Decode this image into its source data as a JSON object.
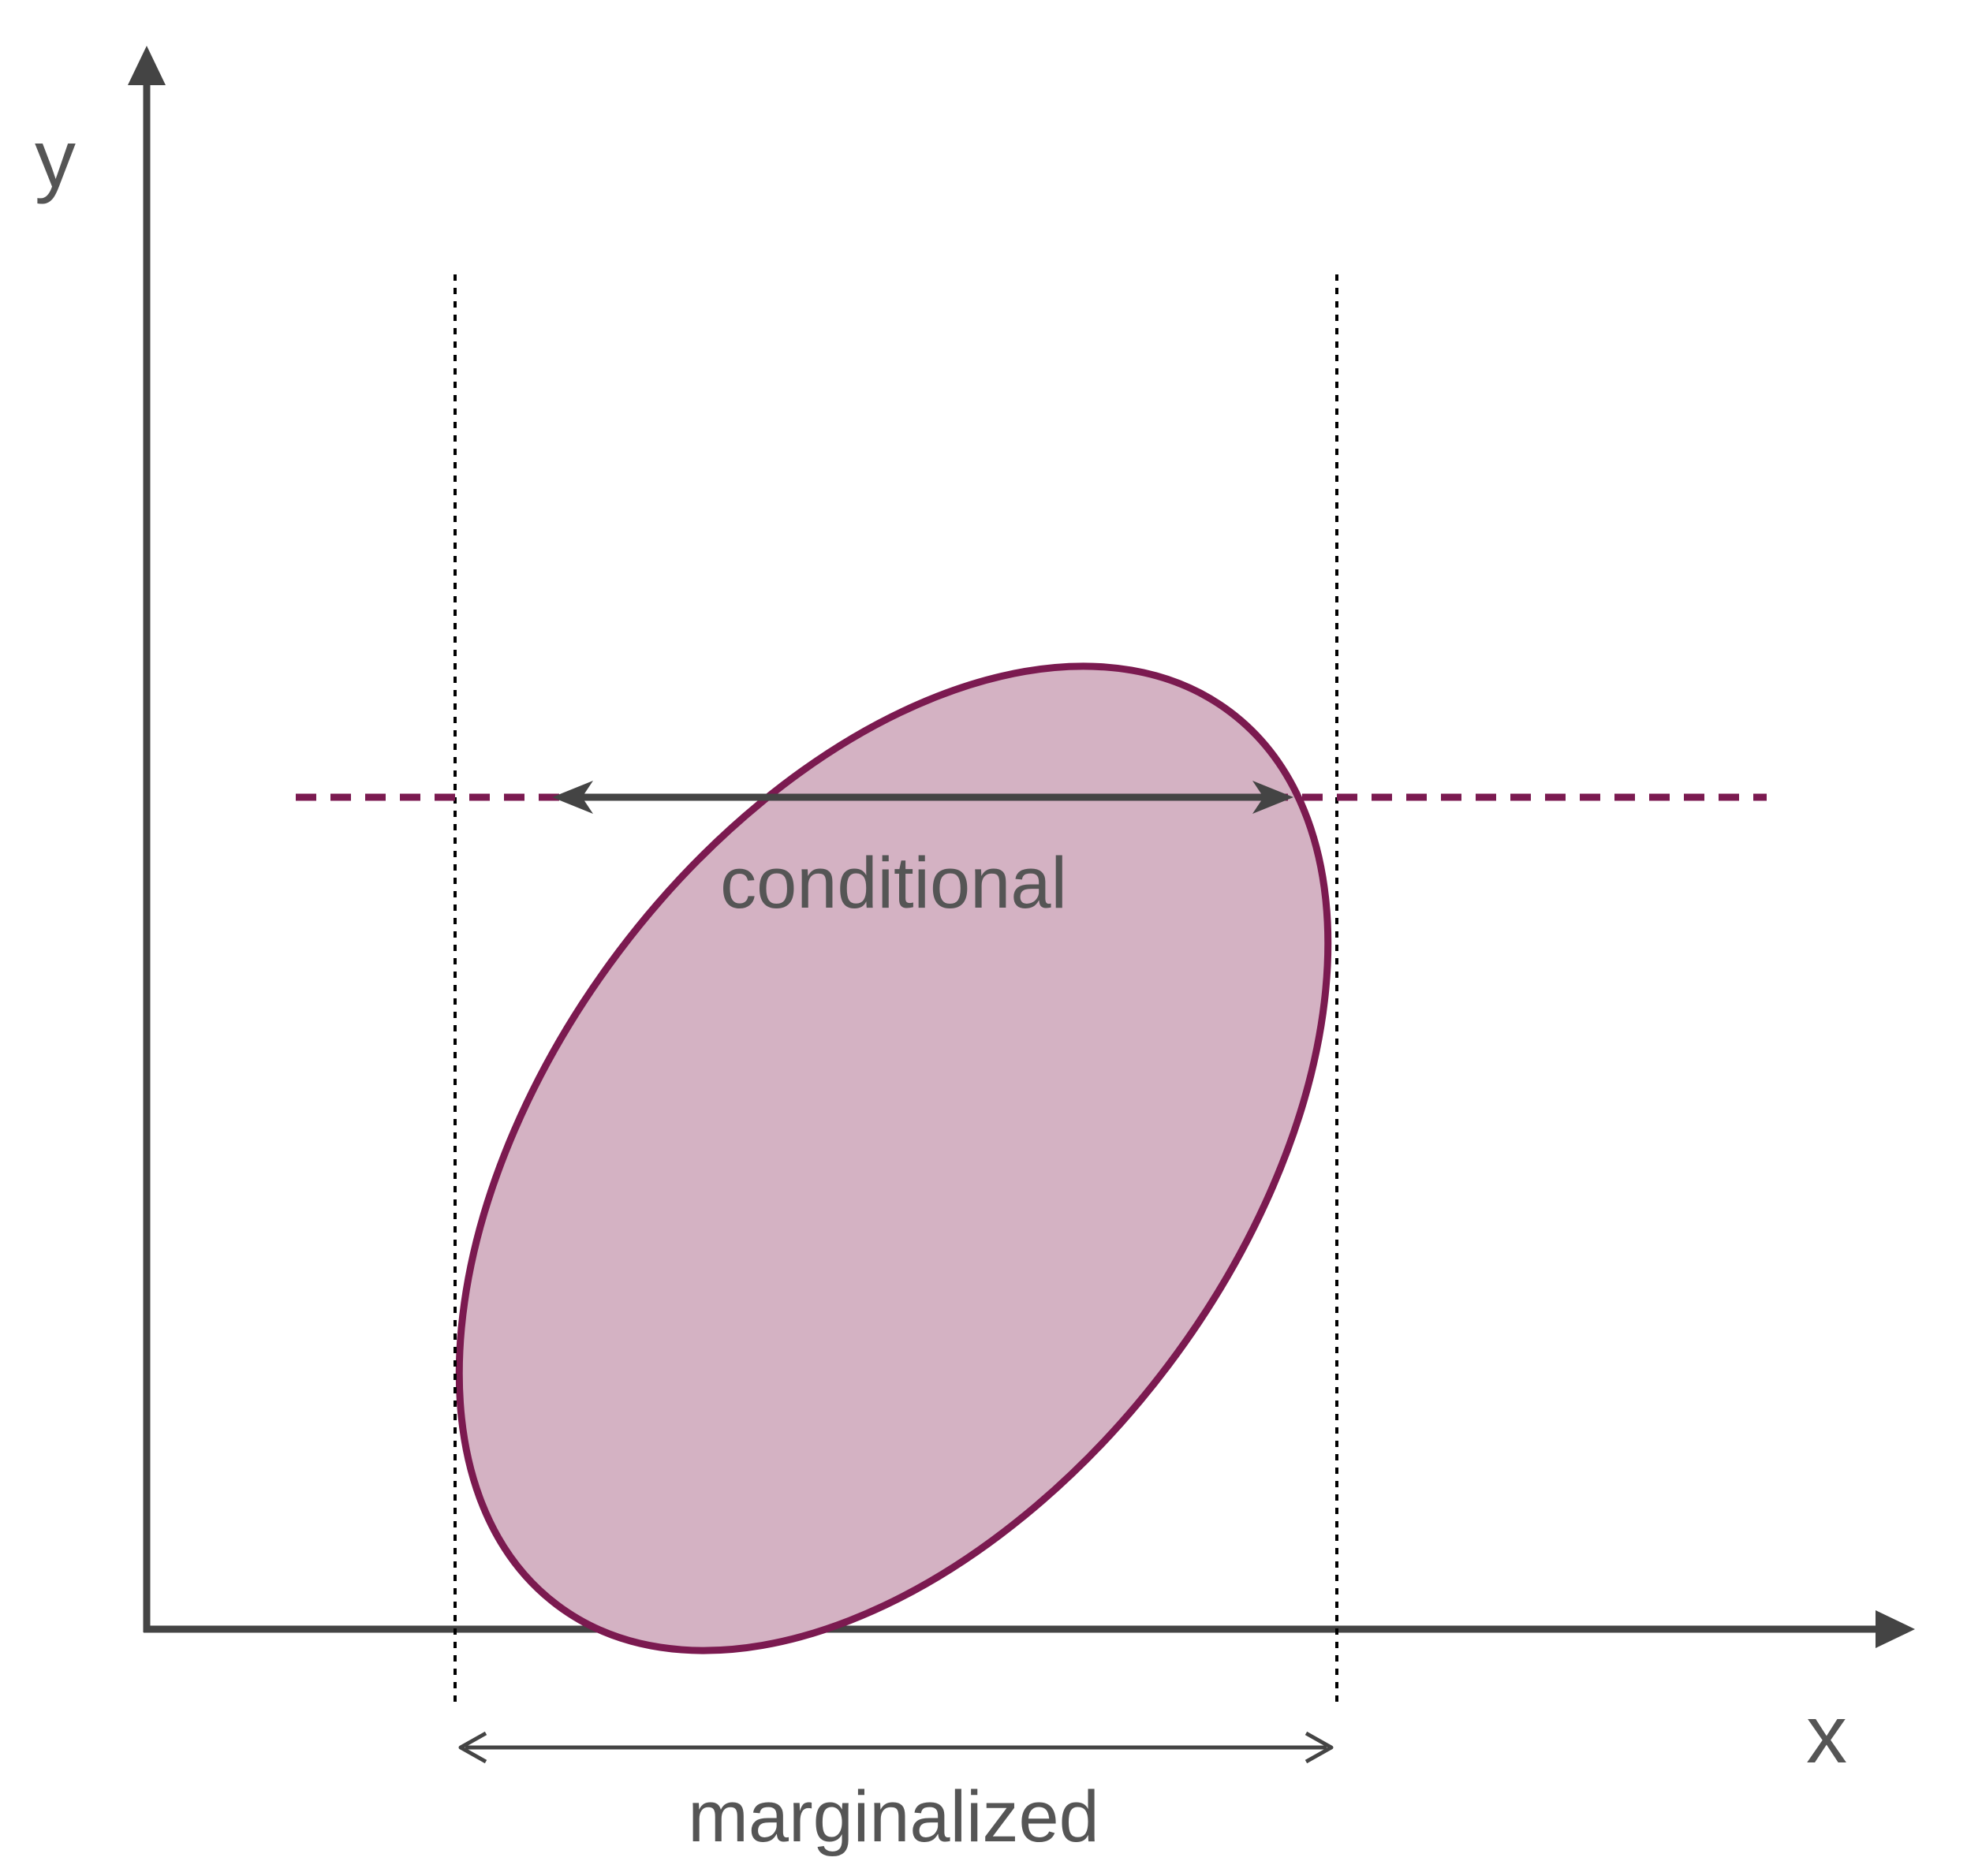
{
  "labels": {
    "y_axis": "y",
    "x_axis": "x",
    "conditional": "conditional",
    "marginalized": "marginalized"
  },
  "colors": {
    "axis": "#444444",
    "ellipse_fill": "#d4b2c3",
    "ellipse_stroke": "#7b1a50",
    "conditional_line": "#7b1a50",
    "guide_lines": "#000000",
    "text": "#555555"
  },
  "shapes": {
    "region": "ellipse",
    "conditional_slice": "horizontal dashed line",
    "marginal_bounds": "vertical dotted lines"
  }
}
